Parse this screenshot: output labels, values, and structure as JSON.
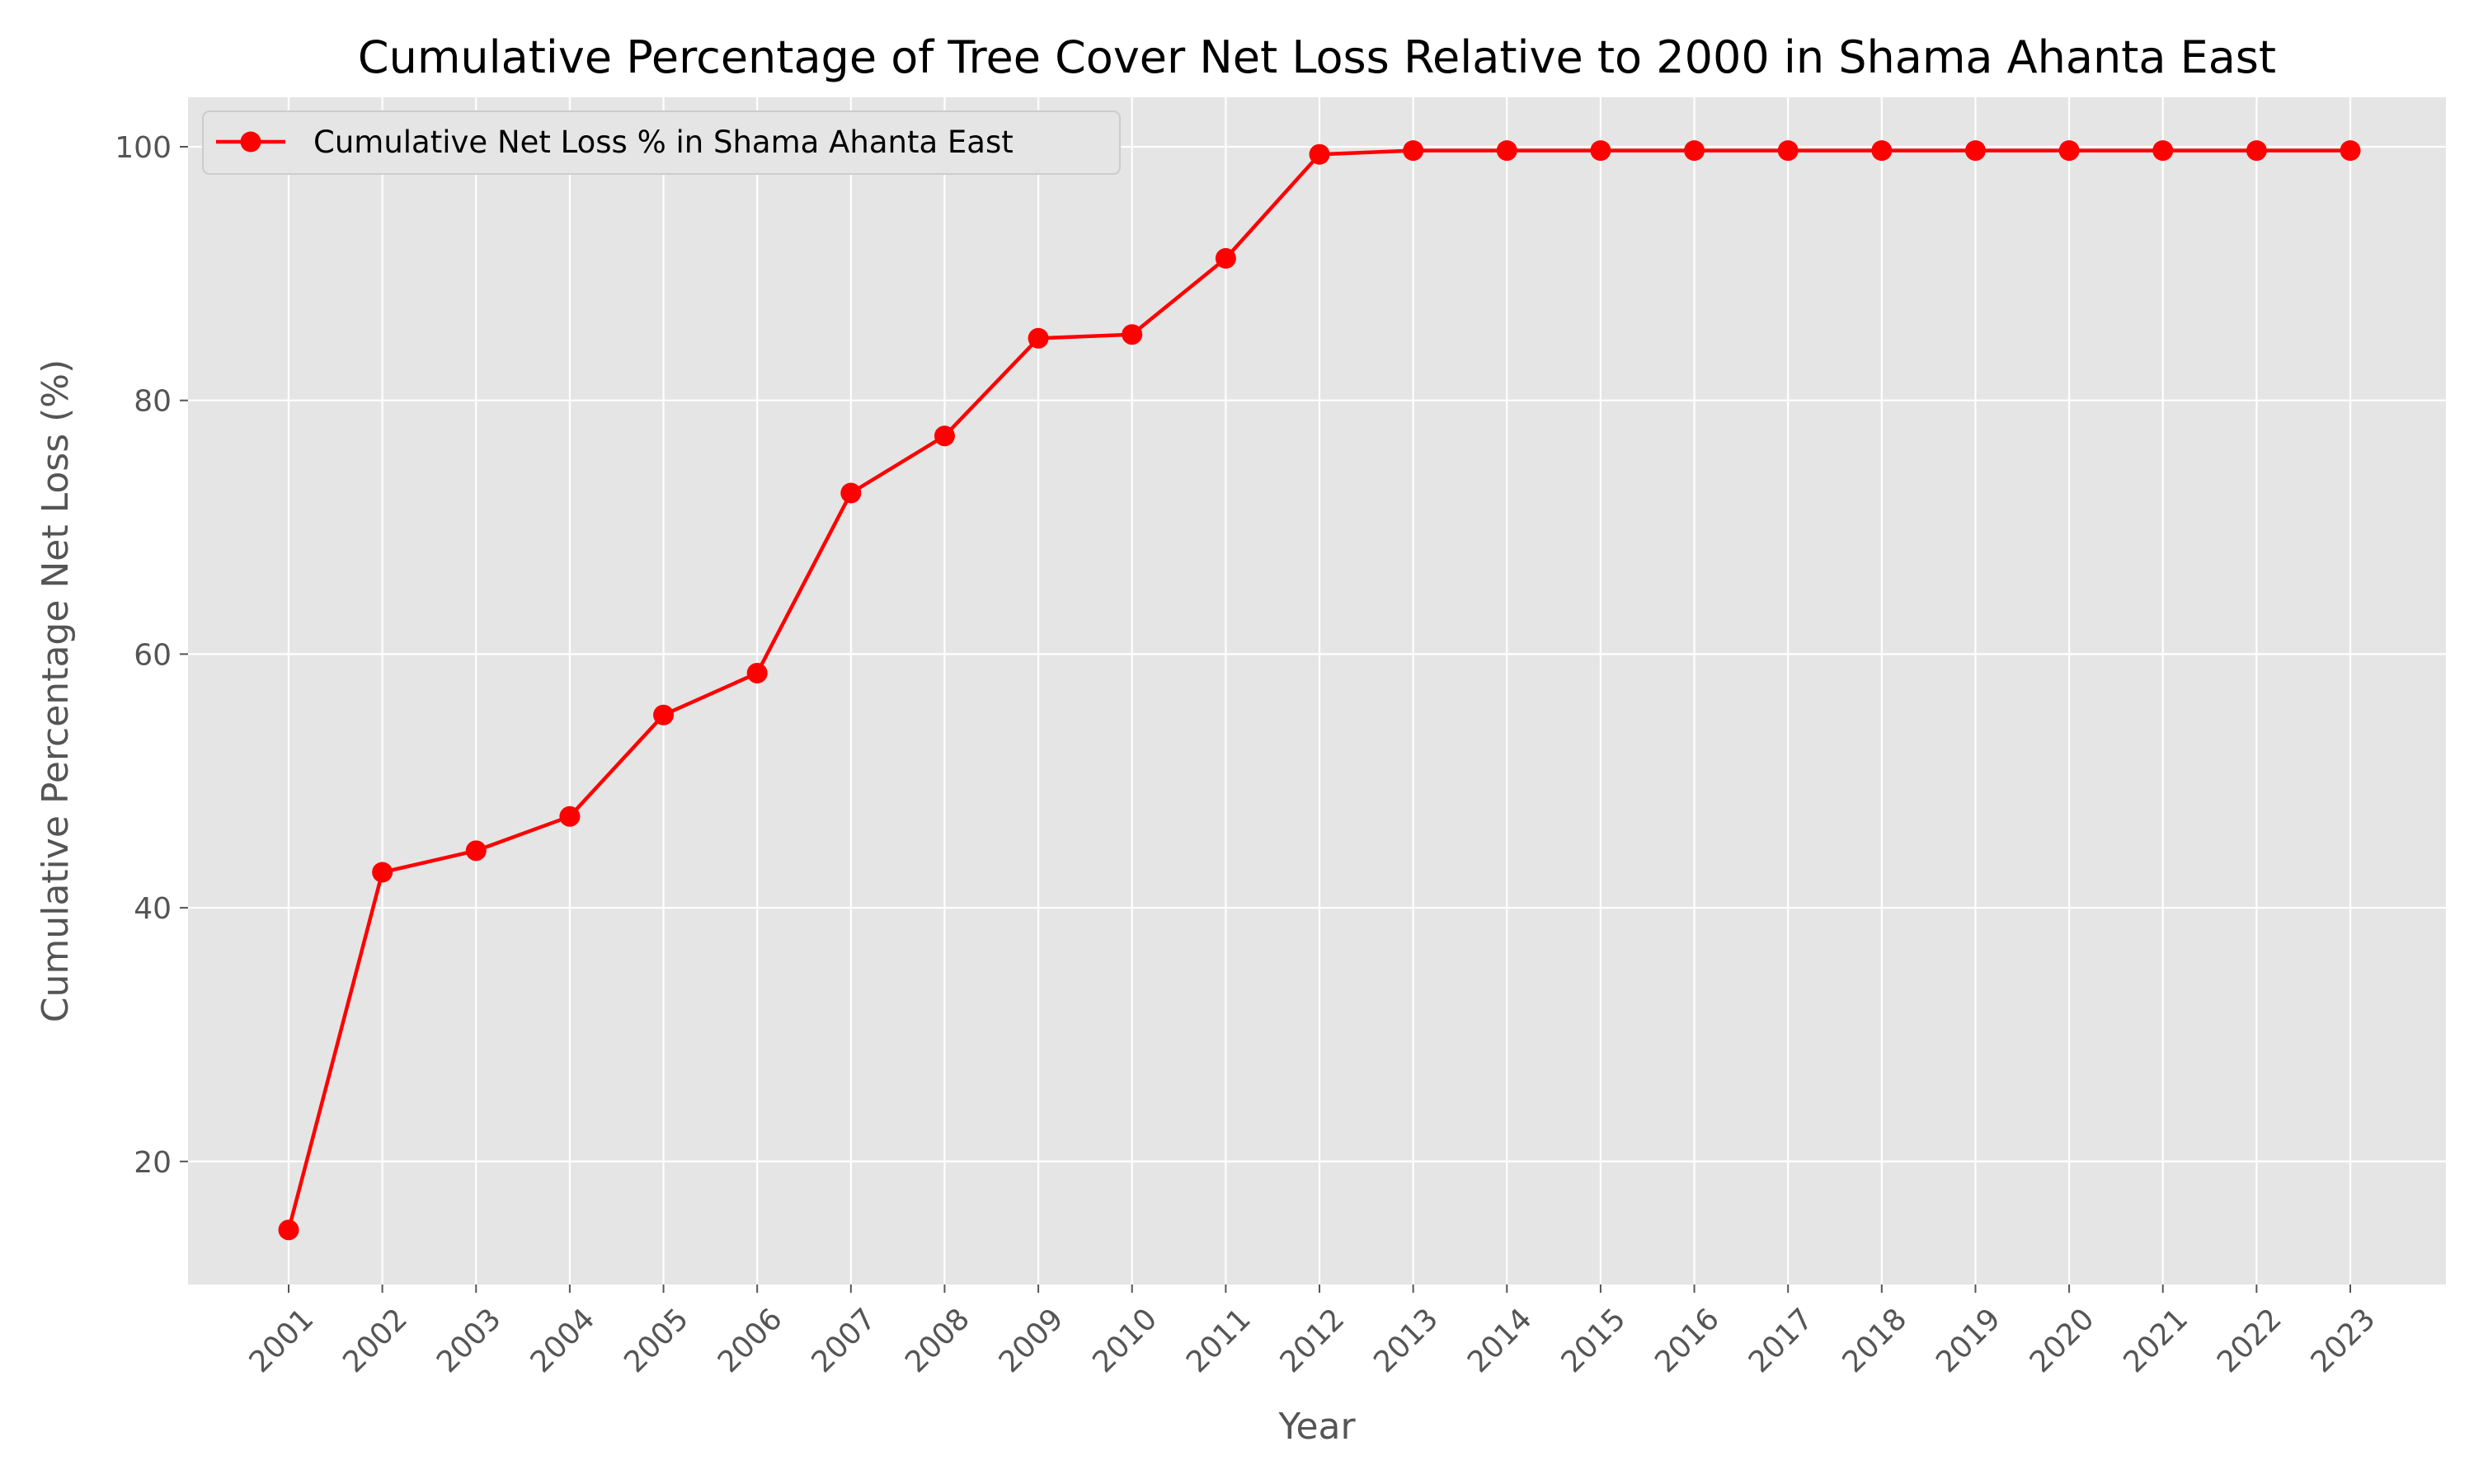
{
  "chart_data": {
    "type": "line",
    "title": "Cumulative Percentage of Tree Cover Net Loss Relative to 2000 in Shama Ahanta East",
    "xlabel": "Year",
    "ylabel": "Cumulative Percentage Net Loss (%)",
    "categories": [
      "2001",
      "2002",
      "2003",
      "2004",
      "2005",
      "2006",
      "2007",
      "2008",
      "2009",
      "2010",
      "2011",
      "2012",
      "2013",
      "2014",
      "2015",
      "2016",
      "2017",
      "2018",
      "2019",
      "2020",
      "2021",
      "2022",
      "2023"
    ],
    "series": [
      {
        "name": "Cumulative Net Loss % in Shama Ahanta East",
        "color": "#ff0000",
        "values": [
          14.6,
          42.8,
          44.5,
          47.2,
          55.2,
          58.5,
          72.7,
          77.2,
          84.9,
          85.2,
          91.2,
          99.4,
          99.7,
          99.7,
          99.7,
          99.7,
          99.7,
          99.7,
          99.7,
          99.7,
          99.7,
          99.7,
          99.7
        ]
      }
    ],
    "yticks": [
      20,
      40,
      60,
      80,
      100
    ],
    "ylim": [
      10.3,
      103.9
    ],
    "grid": true,
    "legend_position": "top-left",
    "background_color": "#e5e5e5",
    "grid_color": "#ffffff"
  }
}
